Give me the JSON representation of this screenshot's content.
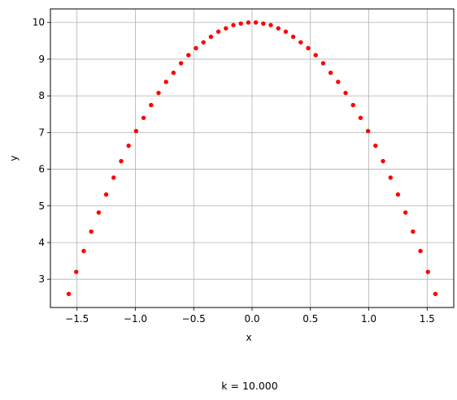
{
  "chart_data": {
    "type": "scatter",
    "xlabel": "x",
    "ylabel": "y",
    "xlim": [
      -1.728,
      1.728
    ],
    "ylim": [
      2.23,
      10.37
    ],
    "xticks": [
      -1.5,
      -1.0,
      -0.5,
      0.0,
      0.5,
      1.0,
      1.5
    ],
    "xtick_labels": [
      "−1.5",
      "−1.0",
      "−0.5",
      "0.0",
      "0.5",
      "1.0",
      "1.5"
    ],
    "yticks": [
      3,
      4,
      5,
      6,
      7,
      8,
      9,
      10
    ],
    "ytick_labels": [
      "3",
      "4",
      "5",
      "6",
      "7",
      "8",
      "9",
      "10"
    ],
    "grid": true,
    "marker_color": "#ff0000",
    "series": [
      {
        "x": [
          -1.5708,
          -1.5067,
          -1.4426,
          -1.3784,
          -1.3143,
          -1.2502,
          -1.1861,
          -1.122,
          -1.0579,
          -0.9937,
          -0.9296,
          -0.8655,
          -0.8014,
          -0.7373,
          -0.6732,
          -0.609,
          -0.5449,
          -0.4808,
          -0.4167,
          -0.3526,
          -0.2885,
          -0.2244,
          -0.1602,
          -0.0961,
          -0.032,
          0.032,
          0.0961,
          0.1602,
          0.2244,
          0.2885,
          0.3526,
          0.4167,
          0.4808,
          0.5449,
          0.609,
          0.6732,
          0.7373,
          0.8014,
          0.8655,
          0.9296,
          0.9937,
          1.0579,
          1.122,
          1.1861,
          1.2502,
          1.3143,
          1.3784,
          1.4426,
          1.5067,
          1.5708
        ],
        "y": [
          2.6,
          3.2,
          3.77,
          4.3,
          4.82,
          5.31,
          5.77,
          6.22,
          6.64,
          7.04,
          7.4,
          7.75,
          8.08,
          8.38,
          8.63,
          8.89,
          9.11,
          9.3,
          9.46,
          9.61,
          9.75,
          9.84,
          9.93,
          9.97,
          10.0,
          10.0,
          9.97,
          9.93,
          9.84,
          9.75,
          9.61,
          9.46,
          9.3,
          9.11,
          8.89,
          8.63,
          8.38,
          8.08,
          7.75,
          7.4,
          7.04,
          6.64,
          6.22,
          5.77,
          5.31,
          4.82,
          4.3,
          3.77,
          3.2,
          2.6
        ]
      }
    ]
  },
  "caption": "k = 10.000"
}
